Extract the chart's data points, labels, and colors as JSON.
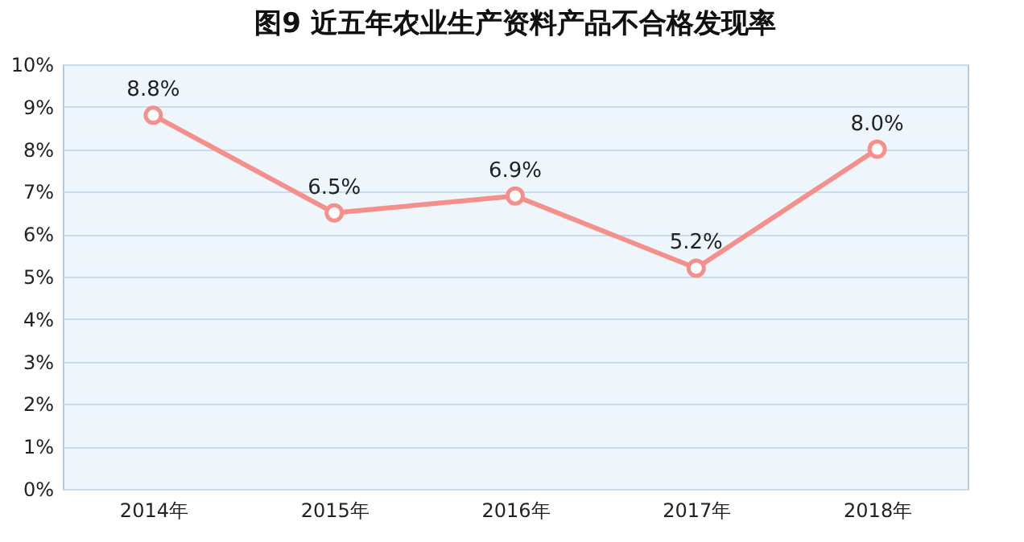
{
  "chart_data": {
    "type": "line",
    "title": "图9 近五年农业生产资料产品不合格发现率",
    "categories": [
      "2014年",
      "2015年",
      "2016年",
      "2017年",
      "2018年"
    ],
    "series": [
      {
        "color": "#f4908b",
        "values": [
          8.8,
          6.5,
          6.9,
          5.2,
          8.0
        ],
        "value_labels": [
          "8.8%",
          "6.5%",
          "6.9%",
          "5.2%",
          "8.0%"
        ]
      }
    ],
    "ylim": [
      0,
      10
    ],
    "yticks": [
      {
        "value": 0,
        "label": "0%"
      },
      {
        "value": 1,
        "label": "1%"
      },
      {
        "value": 2,
        "label": "2%"
      },
      {
        "value": 3,
        "label": "3%"
      },
      {
        "value": 4,
        "label": "4%"
      },
      {
        "value": 5,
        "label": "5%"
      },
      {
        "value": 6,
        "label": "6%"
      },
      {
        "value": 7,
        "label": "7%"
      },
      {
        "value": 8,
        "label": "8%"
      },
      {
        "value": 9,
        "label": "9%"
      },
      {
        "value": 10,
        "label": "10%"
      }
    ],
    "grid": "y",
    "marker": "circle",
    "line_style": "solid"
  }
}
